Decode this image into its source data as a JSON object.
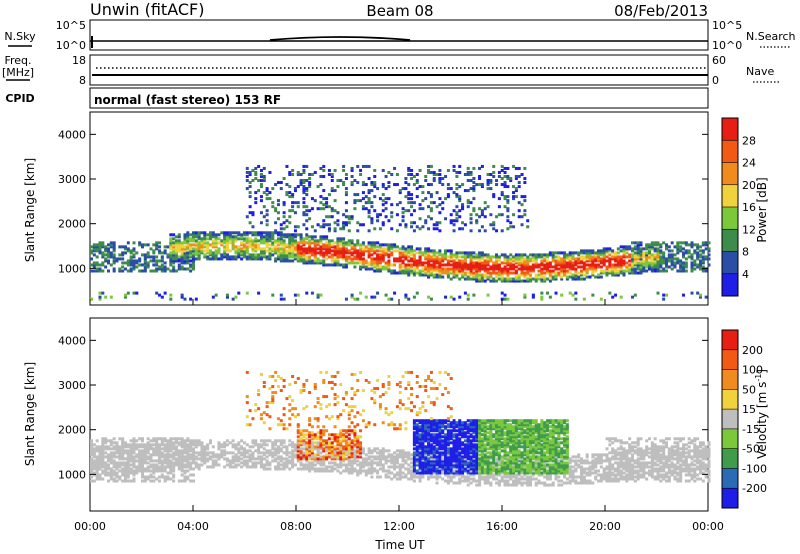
{
  "header": {
    "station": "Unwin (fitACF)",
    "beam": "Beam 08",
    "date": "08/Feb/2013"
  },
  "panels": {
    "nsky_label": "N.Sky",
    "nsky_ticks": [
      "10^5",
      "10^0"
    ],
    "nsearch_label": "N.Search",
    "nsearch_ticks": [
      "10^5",
      "10^0"
    ],
    "freq_label": "Freq.",
    "freq_unit": "[MHz]",
    "freq_ticks": [
      "18",
      "8"
    ],
    "nave_label": "Nave",
    "nave_ticks": [
      "60",
      "0"
    ],
    "cpid_label": "CPID",
    "cpid_text": "normal (fast stereo) 153 RF"
  },
  "chart_data": [
    {
      "type": "heatmap",
      "title": "",
      "ylabel": "Slant Range [km]",
      "xlabel": "",
      "ylim": [
        180,
        4500
      ],
      "yticks": [
        "4000",
        "3000",
        "2000",
        "1000"
      ],
      "colorbar_label": "Power [dB]",
      "colorbar_ticks": [
        "28",
        "24",
        "20",
        "16",
        "12",
        "8",
        "4"
      ],
      "colors": [
        "#1e1ee6",
        "#2a4ea6",
        "#3e8c4c",
        "#7cc83c",
        "#f0d23c",
        "#f08c1e",
        "#f05a14",
        "#e61e14"
      ]
    },
    {
      "type": "heatmap",
      "title": "",
      "ylabel": "Slant Range [km]",
      "xlabel": "Time UT",
      "ylim": [
        180,
        4500
      ],
      "yticks": [
        "4000",
        "3000",
        "2000",
        "1000"
      ],
      "xticks": [
        "00:00",
        "04:00",
        "08:00",
        "12:00",
        "16:00",
        "20:00",
        "00:00"
      ],
      "colorbar_label": "Velocity",
      "colorbar_unit": "[m s",
      "colorbar_unit_sup": "-1",
      "colorbar_unit_end": "]",
      "colorbar_ticks": [
        "200",
        "100",
        "50",
        "15",
        "-15",
        "-50",
        "-100",
        "-200"
      ],
      "colors": [
        "#1e1ee6",
        "#2a6cb4",
        "#3e9c4c",
        "#7cc83c",
        "#bebebe",
        "#f0d23c",
        "#f08c1e",
        "#f05a14",
        "#e61e14"
      ]
    }
  ]
}
